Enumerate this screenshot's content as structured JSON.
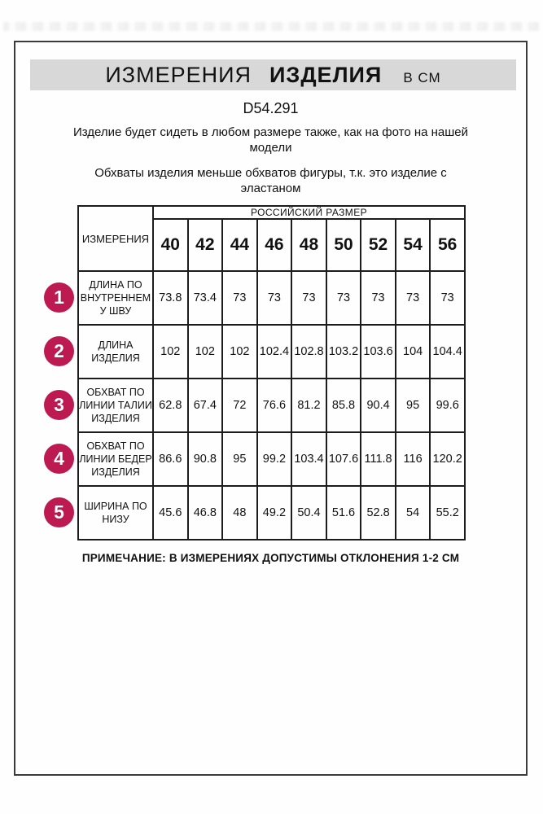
{
  "header": {
    "title_word1": "ИЗМЕРЕНИЯ",
    "title_word2": "ИЗДЕЛИЯ",
    "title_unit": "В СМ",
    "product_code": "D54.291",
    "note_fit": "Изделие будет сидеть в любом размере также, как на фото на нашей модели",
    "note_elastane": "Обхваты изделия меньше обхватов фигуры, т.к. это изделие с эластаном"
  },
  "table": {
    "corner_header": "ИЗМЕРЕНИЯ",
    "group_header": "РОССИЙСКИЙ РАЗМЕР",
    "sizes": [
      "40",
      "42",
      "44",
      "46",
      "48",
      "50",
      "52",
      "54",
      "56"
    ],
    "rows": [
      {
        "num": "1",
        "label": "ДЛИНА ПО ВНУТРЕННЕМУ ШВУ",
        "values": [
          "73.8",
          "73.4",
          "73",
          "73",
          "73",
          "73",
          "73",
          "73",
          "73"
        ]
      },
      {
        "num": "2",
        "label": "ДЛИНА ИЗДЕЛИЯ",
        "values": [
          "102",
          "102",
          "102",
          "102.4",
          "102.8",
          "103.2",
          "103.6",
          "104",
          "104.4"
        ]
      },
      {
        "num": "3",
        "label": "ОБХВАТ ПО ЛИНИИ ТАЛИИ ИЗДЕЛИЯ",
        "values": [
          "62.8",
          "67.4",
          "72",
          "76.6",
          "81.2",
          "85.8",
          "90.4",
          "95",
          "99.6"
        ]
      },
      {
        "num": "4",
        "label": "ОБХВАТ ПО ЛИНИИ БЕДЕР ИЗДЕЛИЯ",
        "values": [
          "86.6",
          "90.8",
          "95",
          "99.2",
          "103.4",
          "107.6",
          "111.8",
          "116",
          "120.2"
        ]
      },
      {
        "num": "5",
        "label": "ШИРИНА ПО НИЗУ",
        "values": [
          "45.6",
          "46.8",
          "48",
          "49.2",
          "50.4",
          "51.6",
          "52.8",
          "54",
          "55.2"
        ]
      }
    ]
  },
  "footnote": "ПРИМЕЧАНИЕ: В ИЗМЕРЕНИЯХ ДОПУСТИМЫ ОТКЛОНЕНИЯ 1-2 СМ",
  "colors": {
    "accent": "#bd1a52",
    "title_bar_bg": "#d8d8d8"
  }
}
